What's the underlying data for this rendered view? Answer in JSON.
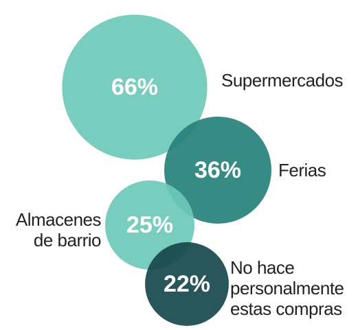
{
  "chart_data": {
    "type": "bubble",
    "categories": [
      "Supermercados",
      "Ferias",
      "Almacenes de barrio",
      "No hace personalmente estas compras"
    ],
    "values": [
      66,
      36,
      25,
      22
    ],
    "value_labels": [
      "66%",
      "36%",
      "25%",
      "22%"
    ],
    "colors": [
      "#6cc9b9",
      "#25817a",
      "#6cc9b9",
      "#17484c"
    ]
  }
}
